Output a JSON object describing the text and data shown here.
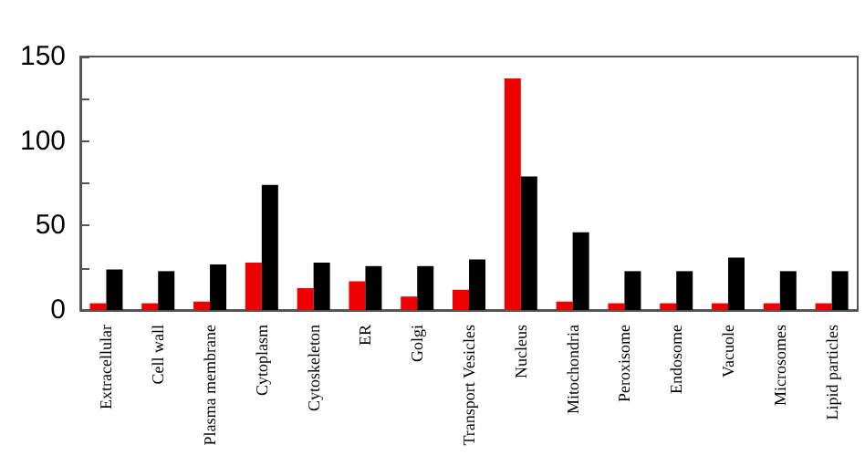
{
  "chart_data": {
    "type": "bar",
    "categories": [
      "Extracellular",
      "Cell wall",
      "Plasma membrane",
      "Cytoplasm",
      "Cytoskeleton",
      "ER",
      "Golgi",
      "Transport Vesicles",
      "Nucleus",
      "Mitochondria",
      "Peroxisome",
      "Endosome",
      "Vacuole",
      "Microsomes",
      "Lipid particles"
    ],
    "series": [
      {
        "color": "#ee0000",
        "values": [
          4,
          4,
          5,
          28,
          13,
          17,
          8,
          12,
          137,
          5,
          4,
          4,
          4,
          4,
          4
        ]
      },
      {
        "color": "#000000",
        "values": [
          24,
          23,
          27,
          74,
          28,
          26,
          26,
          30,
          79,
          46,
          23,
          23,
          31,
          23,
          23
        ]
      }
    ],
    "ylim": [
      0,
      150
    ],
    "yticks": [
      0,
      {
        "value": 25,
        "label": null
      },
      50,
      {
        "value": 75,
        "label": null
      },
      100,
      {
        "value": 125,
        "label": null
      },
      150
    ],
    "grid": false
  }
}
